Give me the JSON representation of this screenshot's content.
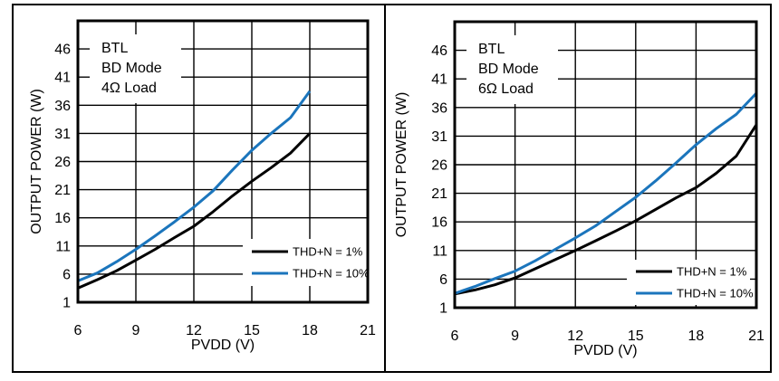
{
  "colors": {
    "background": "#ffffff",
    "frame": "#000000",
    "grid": "#000000",
    "line_black": "#000000",
    "accent_blue": "#1b75bc"
  },
  "chart_data": [
    {
      "type": "line",
      "annotation_lines": [
        "BTL",
        "BD Mode",
        "4Ω Load"
      ],
      "xlabel": "PVDD (V)",
      "ylabel": "OUTPUT POWER (W)",
      "xlim": [
        6,
        21
      ],
      "ylim": [
        1,
        51
      ],
      "x_ticks": [
        6,
        9,
        12,
        15,
        18,
        21
      ],
      "y_ticks": [
        1,
        6,
        11,
        16,
        21,
        26,
        31,
        36,
        41,
        46
      ],
      "grid": true,
      "legend_position": "lower right",
      "series": [
        {
          "name": "THD+N = 1%",
          "color": "#000000",
          "x": [
            6,
            7,
            8,
            9,
            10,
            11,
            12,
            13,
            14,
            15,
            16,
            17,
            18
          ],
          "y": [
            3.5,
            5.0,
            6.6,
            8.5,
            10.4,
            12.5,
            14.5,
            17.1,
            19.9,
            22.5,
            24.9,
            27.5,
            31.0
          ]
        },
        {
          "name": "THD+N = 10%",
          "color": "#1b75bc",
          "x": [
            6,
            7,
            8,
            9,
            10,
            11,
            12,
            13,
            14,
            15,
            16,
            17,
            18
          ],
          "y": [
            4.8,
            6.2,
            8.2,
            10.4,
            12.8,
            15.3,
            17.9,
            20.8,
            24.5,
            28.0,
            31.0,
            33.8,
            38.5
          ]
        }
      ]
    },
    {
      "type": "line",
      "annotation_lines": [
        "BTL",
        "BD Mode",
        "6Ω Load"
      ],
      "xlabel": "PVDD (V)",
      "ylabel": "OUTPUT POWER (W)",
      "xlim": [
        6,
        21
      ],
      "ylim": [
        1,
        51
      ],
      "x_ticks": [
        6,
        9,
        12,
        15,
        18,
        21
      ],
      "y_ticks": [
        1,
        6,
        11,
        16,
        21,
        26,
        31,
        36,
        41,
        46
      ],
      "grid": true,
      "legend_position": "lower right",
      "series": [
        {
          "name": "THD+N = 1%",
          "color": "#000000",
          "x": [
            6,
            7,
            8,
            9,
            10,
            11,
            12,
            13,
            14,
            15,
            16,
            17,
            18,
            19,
            20,
            21
          ],
          "y": [
            3.4,
            4.1,
            5.0,
            6.2,
            7.8,
            9.4,
            11.0,
            12.7,
            14.4,
            16.2,
            18.2,
            20.2,
            22.0,
            24.5,
            27.5,
            33.0
          ]
        },
        {
          "name": "THD+N = 10%",
          "color": "#1b75bc",
          "x": [
            6,
            7,
            8,
            9,
            10,
            11,
            12,
            13,
            14,
            15,
            16,
            17,
            18,
            19,
            20,
            21
          ],
          "y": [
            3.5,
            4.7,
            6.1,
            7.4,
            9.2,
            11.2,
            13.2,
            15.3,
            17.8,
            20.3,
            23.2,
            26.3,
            29.5,
            32.3,
            34.8,
            38.5
          ]
        }
      ]
    }
  ]
}
